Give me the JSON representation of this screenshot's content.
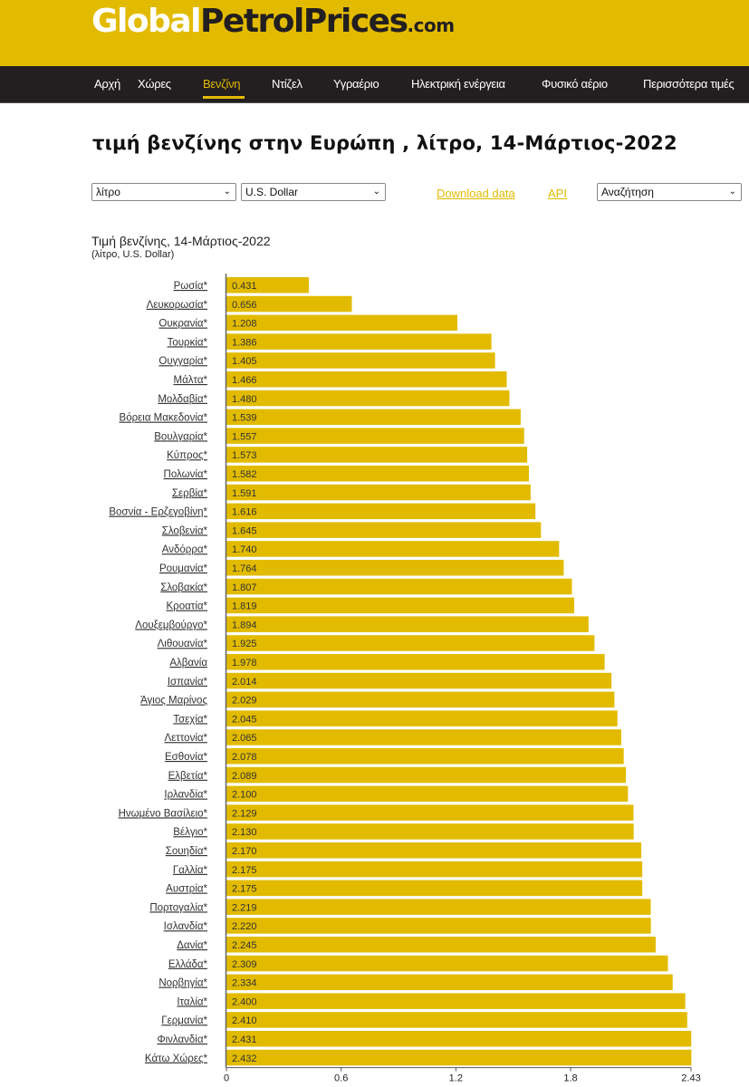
{
  "header": {
    "logo": {
      "part1": "Global",
      "part2": "PetrolPrices",
      "part3": ".com"
    }
  },
  "nav": {
    "items": [
      {
        "label": "Αρχή",
        "active": false
      },
      {
        "label": "Χώρες",
        "active": false
      },
      {
        "label": "Βενζίνη",
        "active": true
      },
      {
        "label": "Ντίζελ",
        "active": false
      },
      {
        "label": "Υγραέριο",
        "active": false
      },
      {
        "label": "Ηλεκτρική ενέργεια",
        "active": false
      },
      {
        "label": "Φυσικό αέριο",
        "active": false
      },
      {
        "label": "Περισσότερα τιμές",
        "active": false
      }
    ]
  },
  "page": {
    "title": "τιμή βενζίνης στην Ευρώπη , λίτρο, 14-Μάρτιος-2022"
  },
  "controls": {
    "unit_select": "λίτρο",
    "currency_select": "U.S. Dollar",
    "download_link": "Download data",
    "api_link": "API",
    "search_select": "Αναζήτηση",
    "chevron": "❯"
  },
  "colors": {
    "brand_yellow": "#e2bb00",
    "nav_dark": "#231f20",
    "bar": "#e2bb00"
  },
  "chart_data": {
    "type": "bar",
    "orientation": "horizontal",
    "title": "Τιμή βενζίνης, 14-Μάρτιος-2022",
    "subtitle": "(λίτρο, U.S. Dollar)",
    "xlabel": "",
    "ylabel": "",
    "xlim": [
      0,
      2.43
    ],
    "xticks": [
      0,
      0.6,
      1.2,
      1.8,
      2.43
    ],
    "xtick_labels": [
      "0",
      "0.6",
      "1.2",
      "1.8",
      "2.43"
    ],
    "grid": false,
    "legend": "none",
    "categories": [
      "Ρωσία*",
      "Λευκορωσία*",
      "Ουκρανία*",
      "Τουρκία*",
      "Ουγγαρία*",
      "Μάλτα*",
      "Μολδαβία*",
      "Βόρεια Μακεδονία*",
      "Βουλγαρία*",
      "Κύπρος*",
      "Πολωνία*",
      "Σερβία*",
      "Βοσνία - Ερζεγοβίνη*",
      "Σλοβενία*",
      "Ανδόρρα*",
      "Ρουμανία*",
      "Σλοβακία*",
      "Κροατία*",
      "Λουξεμβούργο*",
      "Λιθουανία*",
      "Αλβανία ",
      "Ισπανία*",
      "Άγιος Μαρίνος ",
      "Τσεχία*",
      "Λεττονία*",
      "Εσθονία*",
      "Ελβετία*",
      "Ιρλανδία*",
      "Ηνωμένο Βασίλειο*",
      "Βέλγιο*",
      "Σουηδία*",
      "Γαλλία*",
      "Αυστρία*",
      "Πορτογαλία*",
      "Ισλανδία*",
      "Δανία*",
      "Ελλάδα*",
      "Νορβηγία*",
      "Ιταλία*",
      "Γερμανία*",
      "Φινλανδία*",
      "Κάτω Χώρες*"
    ],
    "values": [
      0.431,
      0.656,
      1.208,
      1.386,
      1.405,
      1.466,
      1.48,
      1.539,
      1.557,
      1.573,
      1.582,
      1.591,
      1.616,
      1.645,
      1.74,
      1.764,
      1.807,
      1.819,
      1.894,
      1.925,
      1.978,
      2.014,
      2.029,
      2.045,
      2.065,
      2.078,
      2.089,
      2.1,
      2.129,
      2.13,
      2.17,
      2.175,
      2.175,
      2.219,
      2.22,
      2.245,
      2.309,
      2.334,
      2.4,
      2.41,
      2.431,
      2.432
    ],
    "value_labels": [
      "0.431",
      "0.656",
      "1.208",
      "1.386",
      "1.405",
      "1.466",
      "1.480",
      "1.539",
      "1.557",
      "1.573",
      "1.582",
      "1.591",
      "1.616",
      "1.645",
      "1.740",
      "1.764",
      "1.807",
      "1.819",
      "1.894",
      "1.925",
      "1.978",
      "2.014",
      "2.029",
      "2.045",
      "2.065",
      "2.078",
      "2.089",
      "2.100",
      "2.129",
      "2.130",
      "2.170",
      "2.175",
      "2.175",
      "2.219",
      "2.220",
      "2.245",
      "2.309",
      "2.334",
      "2.400",
      "2.410",
      "2.431",
      "2.432"
    ]
  }
}
